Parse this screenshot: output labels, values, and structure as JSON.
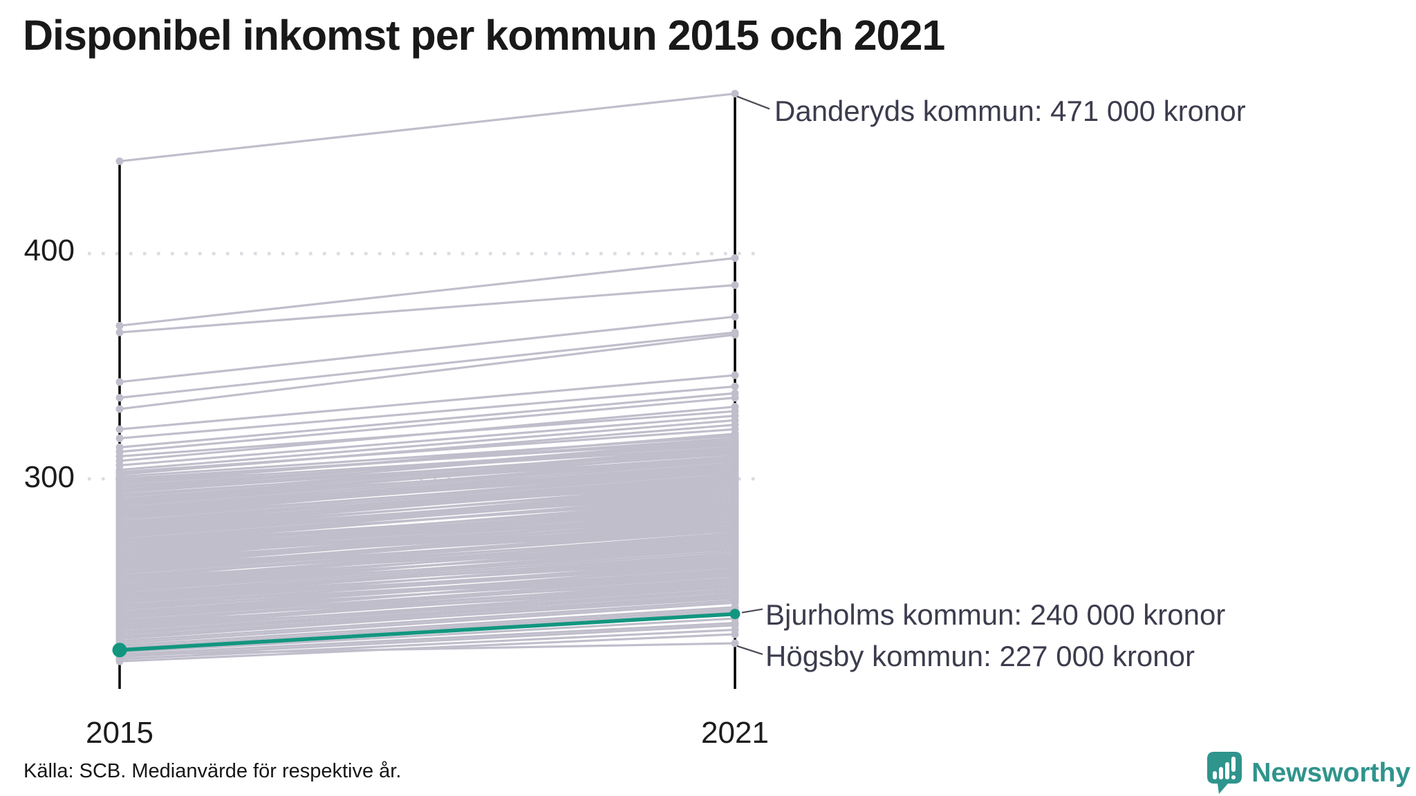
{
  "title": "Disponibel inkomst per kommun 2015 och 2021",
  "footer": {
    "source": "Källa: SCB. Medianvärde för respektive år.",
    "brand": "Newsworthy"
  },
  "colors": {
    "highlight_teal": "#129680",
    "line_gray": "#c0becb",
    "gridline_gray": "#dcdbe2",
    "axis_black": "#000000",
    "annotation_text": "#3c3c4e",
    "brand_teal": "#2f948c"
  },
  "chart_data": {
    "type": "line",
    "subtype": "slope",
    "title": "Disponibel inkomst per kommun 2015 och 2021",
    "x": [
      2015,
      2021
    ],
    "x_tick_labels": [
      "2015",
      "2021"
    ],
    "y_ticks": [
      300,
      400
    ],
    "y_tick_labels": [
      "300",
      "400"
    ],
    "ylim": [
      205,
      485
    ],
    "grid": "dotted-horizontal",
    "unit": "tusen kronor",
    "legend": "none",
    "annotations": [
      {
        "label": "Danderyds kommun: 471 000 kronor",
        "series": "Danderyds kommun",
        "year": 2021,
        "value": 471
      },
      {
        "label": "Bjurholms kommun: 240 000 kronor",
        "series": "Bjurholms kommun",
        "year": 2021,
        "value": 240
      },
      {
        "label": "Högsby kommun: 227 000 kronor",
        "series": "Högsby kommun",
        "year": 2021,
        "value": 227
      }
    ],
    "highlight_series": {
      "name": "Bjurholms kommun",
      "values": [
        224,
        240
      ]
    },
    "series": [
      [
        441,
        471
      ],
      [
        368,
        398
      ],
      [
        365,
        386
      ],
      [
        343,
        372
      ],
      [
        336,
        365
      ],
      [
        331,
        364
      ],
      [
        322,
        346
      ],
      [
        318,
        341
      ],
      [
        314,
        338
      ],
      [
        312,
        336
      ],
      [
        310,
        330
      ],
      [
        308,
        332
      ],
      [
        306,
        328
      ],
      [
        304,
        326
      ],
      [
        303,
        322
      ],
      [
        302,
        324
      ],
      [
        301,
        319
      ],
      [
        300,
        317
      ],
      [
        299,
        318
      ],
      [
        298,
        315
      ],
      [
        298,
        320
      ],
      [
        297,
        314
      ],
      [
        296,
        316
      ],
      [
        295,
        312
      ],
      [
        295,
        317
      ],
      [
        294,
        313
      ],
      [
        293,
        311
      ],
      [
        292,
        314
      ],
      [
        291,
        310
      ],
      [
        290,
        312
      ],
      [
        290,
        308
      ],
      [
        289,
        309
      ],
      [
        288,
        310
      ],
      [
        287,
        306
      ],
      [
        286,
        308
      ],
      [
        285,
        304
      ],
      [
        285,
        307
      ],
      [
        284,
        305
      ],
      [
        283,
        303
      ],
      [
        282,
        304
      ],
      [
        281,
        300
      ],
      [
        280,
        302
      ],
      [
        280,
        298
      ],
      [
        279,
        301
      ],
      [
        278,
        299
      ],
      [
        277,
        297
      ],
      [
        276,
        298
      ],
      [
        275,
        296
      ],
      [
        275,
        293
      ],
      [
        274,
        295
      ],
      [
        273,
        294
      ],
      [
        272,
        292
      ],
      [
        271,
        293
      ],
      [
        270,
        290
      ],
      [
        270,
        288
      ],
      [
        269,
        291
      ],
      [
        268,
        289
      ],
      [
        268,
        286
      ],
      [
        267,
        288
      ],
      [
        266,
        287
      ],
      [
        265,
        285
      ],
      [
        265,
        283
      ],
      [
        264,
        286
      ],
      [
        263,
        284
      ],
      [
        262,
        282
      ],
      [
        261,
        283
      ],
      [
        260,
        281
      ],
      [
        260,
        279
      ],
      [
        259,
        280
      ],
      [
        258,
        278
      ],
      [
        258,
        281
      ],
      [
        257,
        277
      ],
      [
        256,
        279
      ],
      [
        255,
        276
      ],
      [
        255,
        274
      ],
      [
        254,
        275
      ],
      [
        253,
        273
      ],
      [
        252,
        274
      ],
      [
        252,
        271
      ],
      [
        251,
        272
      ],
      [
        250,
        270
      ],
      [
        250,
        273
      ],
      [
        249,
        269
      ],
      [
        248,
        268
      ],
      [
        248,
        266
      ],
      [
        247,
        267
      ],
      [
        246,
        265
      ],
      [
        245,
        266
      ],
      [
        245,
        263
      ],
      [
        244,
        262
      ],
      [
        243,
        264
      ],
      [
        242,
        261
      ],
      [
        241,
        260
      ],
      [
        240,
        262
      ],
      [
        240,
        258
      ],
      [
        239,
        259
      ],
      [
        238,
        257
      ],
      [
        238,
        260
      ],
      [
        237,
        256
      ],
      [
        236,
        258
      ],
      [
        235,
        255
      ],
      [
        235,
        253
      ],
      [
        234,
        254
      ],
      [
        233,
        252
      ],
      [
        232,
        251
      ],
      [
        231,
        250
      ],
      [
        230,
        249
      ],
      [
        230,
        247
      ],
      [
        229,
        248
      ],
      [
        228,
        246
      ],
      [
        227,
        245
      ],
      [
        226,
        243
      ],
      [
        225,
        242
      ],
      [
        224,
        241
      ],
      [
        223,
        238
      ],
      [
        222,
        236
      ],
      [
        221,
        235
      ],
      [
        220,
        233
      ],
      [
        219,
        231
      ],
      [
        294,
        316
      ],
      [
        291,
        313
      ],
      [
        289,
        312
      ],
      [
        287,
        309
      ],
      [
        286,
        305
      ],
      [
        284,
        306
      ],
      [
        283,
        307
      ],
      [
        281,
        303
      ],
      [
        279,
        300
      ],
      [
        278,
        302
      ],
      [
        277,
        300
      ],
      [
        276,
        295
      ],
      [
        274,
        297
      ],
      [
        273,
        291
      ],
      [
        272,
        295
      ],
      [
        271,
        289
      ],
      [
        269,
        287
      ],
      [
        267,
        285
      ],
      [
        266,
        284
      ],
      [
        264,
        281
      ],
      [
        263,
        280
      ],
      [
        262,
        284
      ],
      [
        261,
        278
      ],
      [
        259,
        277
      ],
      [
        257,
        275
      ],
      [
        256,
        272
      ],
      [
        254,
        272
      ],
      [
        253,
        270
      ],
      [
        251,
        269
      ],
      [
        249,
        265
      ],
      [
        247,
        264
      ],
      [
        246,
        262
      ],
      [
        244,
        259
      ],
      [
        243,
        258
      ],
      [
        241,
        257
      ],
      [
        239,
        255
      ],
      [
        237,
        254
      ],
      [
        236,
        252
      ],
      [
        234,
        250
      ],
      [
        232,
        248
      ],
      [
        222,
        227
      ]
    ]
  }
}
